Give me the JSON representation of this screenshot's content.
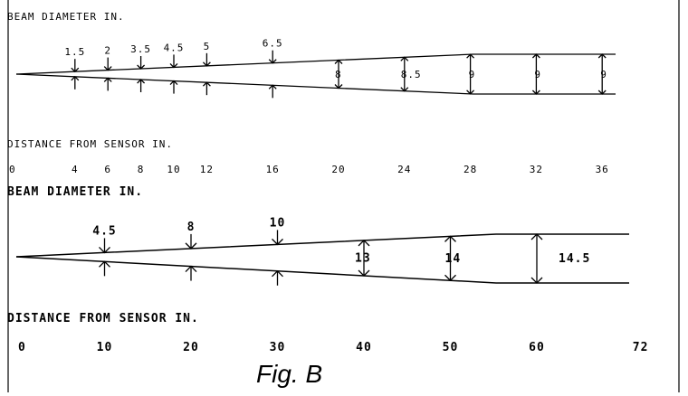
{
  "diagram1": {
    "title": "BEAM DIAMETER IN.",
    "xlabel": "DISTANCE FROM SENSOR IN.",
    "ticks": [
      "0",
      "4",
      "6",
      "8",
      "10",
      "12",
      "16",
      "20",
      "24",
      "28",
      "32",
      "36"
    ],
    "diameters_above": [
      {
        "distance": 4,
        "label": "1.5"
      },
      {
        "distance": 6,
        "label": "2"
      },
      {
        "distance": 8,
        "label": "3.5"
      },
      {
        "distance": 10,
        "label": "4.5"
      },
      {
        "distance": 12,
        "label": "5"
      },
      {
        "distance": 16,
        "label": "6.5"
      }
    ],
    "diameters_inside": [
      {
        "distance": 20,
        "label": "8"
      },
      {
        "distance": 24,
        "label": "8.5"
      },
      {
        "distance": 28,
        "label": "9"
      },
      {
        "distance": 32,
        "label": "9"
      },
      {
        "distance": 36,
        "label": "9"
      }
    ]
  },
  "diagram2": {
    "title": "BEAM DIAMETER IN.",
    "xlabel": "DISTANCE FROM SENSOR IN.",
    "ticks": [
      "0",
      "10",
      "20",
      "30",
      "40",
      "50",
      "60",
      "72"
    ],
    "diameters_above": [
      {
        "distance": 10,
        "label": "4.5"
      },
      {
        "distance": 20,
        "label": "8"
      },
      {
        "distance": 30,
        "label": "10"
      }
    ],
    "diameters_inside": [
      {
        "distance": 40,
        "label": "13"
      },
      {
        "distance": 50,
        "label": "14"
      },
      {
        "distance": 60,
        "label": "14.5"
      }
    ]
  },
  "caption": "Fig. B"
}
